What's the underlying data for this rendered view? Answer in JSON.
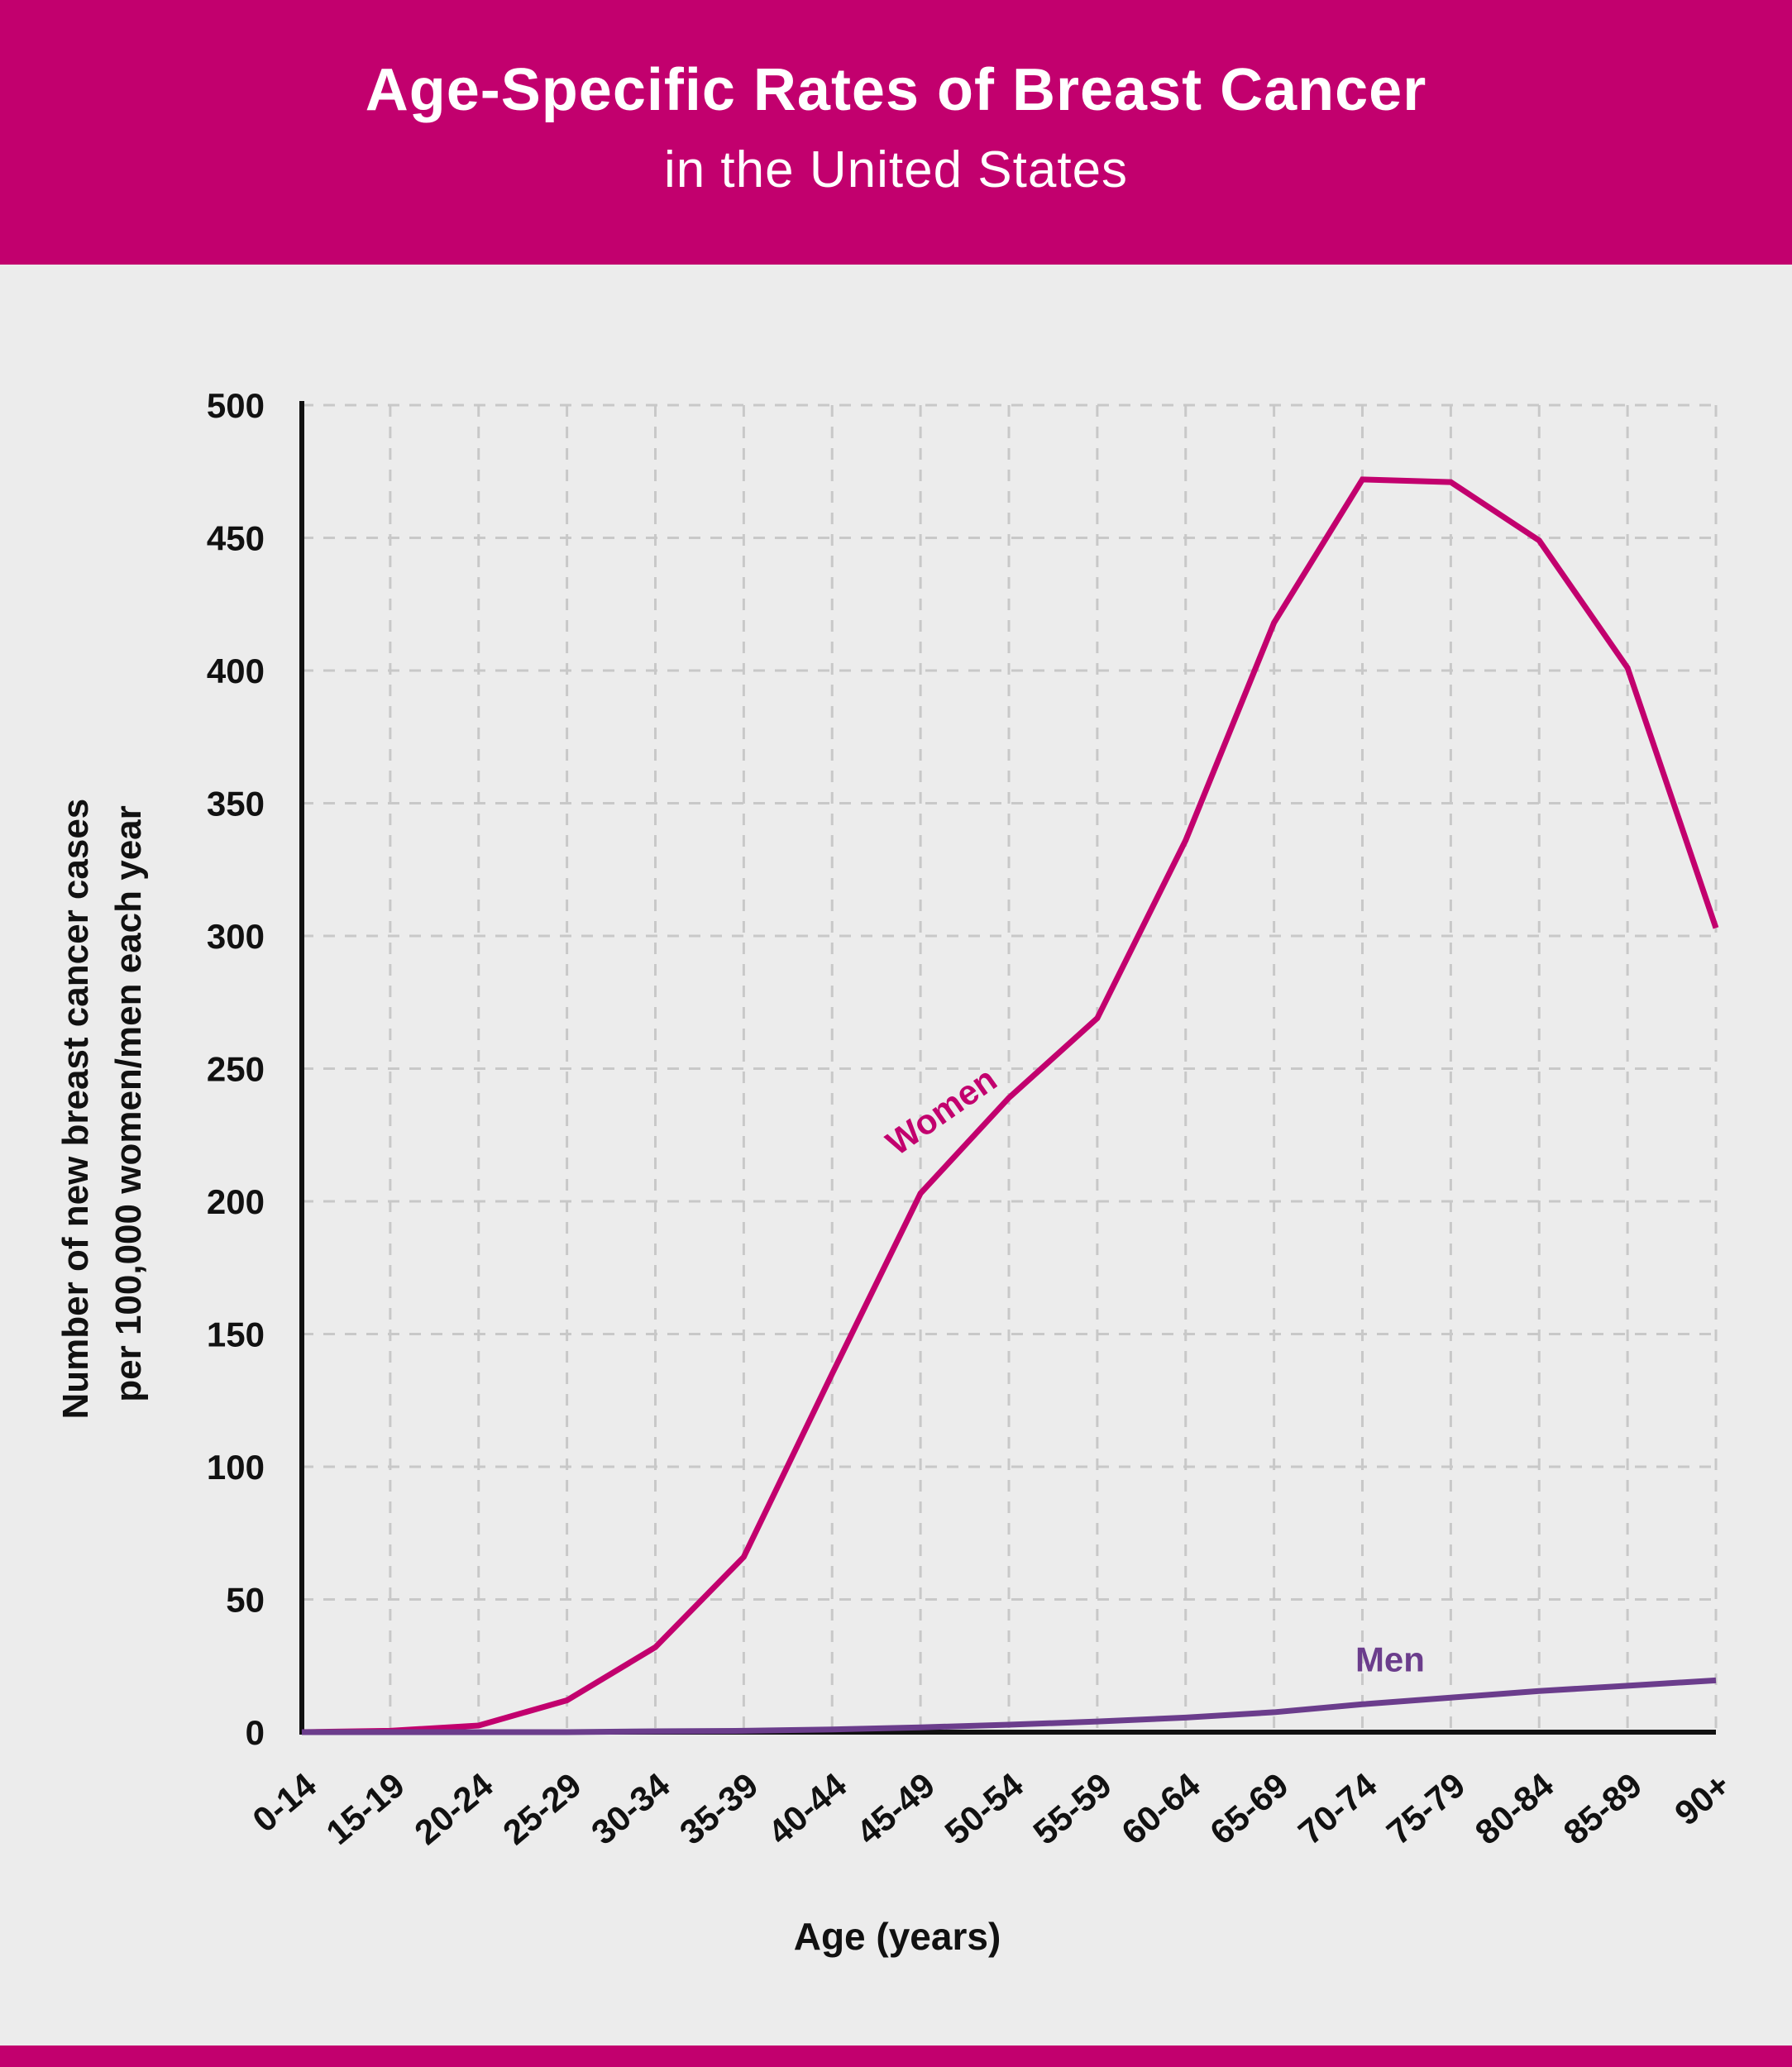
{
  "header": {
    "title": "Age-Specific Rates of Breast Cancer",
    "subtitle": "in the United States"
  },
  "colors": {
    "header_bg": "#c2006e",
    "women_line": "#c2006e",
    "men_line": "#6b3d8c",
    "grid": "#c8c8c8",
    "background": "#ececec"
  },
  "chart_data": {
    "type": "line",
    "xlabel": "Age (years)",
    "ylabel_lines": [
      "Number of new breast cancer cases",
      "per 100,000 women/men each year"
    ],
    "categories": [
      "0-14",
      "15-19",
      "20-24",
      "25-29",
      "30-34",
      "35-39",
      "40-44",
      "45-49",
      "50-54",
      "55-59",
      "60-64",
      "65-69",
      "70-74",
      "75-79",
      "80-84",
      "85-89",
      "90+"
    ],
    "ylim": [
      0,
      500
    ],
    "yticks": [
      0,
      50,
      100,
      150,
      200,
      250,
      300,
      350,
      400,
      450,
      500
    ],
    "grid": true,
    "series": [
      {
        "name": "Women",
        "values": [
          0,
          0.5,
          2.5,
          12,
          32,
          66,
          135,
          203,
          239,
          269,
          336,
          418,
          472,
          471,
          449,
          401,
          303
        ]
      },
      {
        "name": "Men",
        "values": [
          0,
          0,
          0,
          0,
          0.3,
          0.5,
          1,
          1.8,
          2.8,
          4,
          5.5,
          7.5,
          10.5,
          13,
          15.5,
          17.5,
          19.5
        ]
      }
    ]
  }
}
